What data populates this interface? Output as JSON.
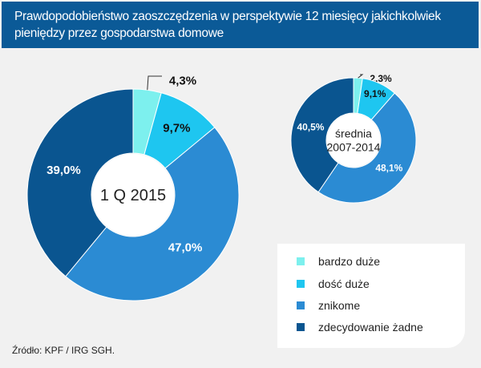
{
  "title": "Prawdopodobieństwo zaoszczędzenia w perspektywie 12 miesięcy jakichkolwiek pieniędzy przez gospodarstwa domowe",
  "source": "Źródło: KPF / IRG SGH.",
  "chart_data": [
    {
      "type": "pie",
      "variant": "donut",
      "center_label": "1 Q 2015",
      "categories": [
        "bardzo duże",
        "dość duże",
        "znikome",
        "zdecydowanie żadne"
      ],
      "values": [
        4.3,
        9.7,
        47.0,
        39.0
      ],
      "labels": [
        "4,3%",
        "9,7%",
        "47,0%",
        "39,0%"
      ]
    },
    {
      "type": "pie",
      "variant": "donut",
      "center_label": "średnia 2007-2014",
      "center_lines": [
        "średnia",
        "2007-2014"
      ],
      "categories": [
        "bardzo duże",
        "dość duże",
        "znikome",
        "zdecydowanie żadne"
      ],
      "values": [
        2.3,
        9.1,
        48.1,
        40.5
      ],
      "labels": [
        "2,3%",
        "9,1%",
        "48,1%",
        "40,5%"
      ]
    }
  ],
  "legend": [
    {
      "label": "bardzo duże",
      "color": "#7df0ee"
    },
    {
      "label": "dość duże",
      "color": "#1ec6f0"
    },
    {
      "label": "znikome",
      "color": "#2b8bd3"
    },
    {
      "label": "zdecydowanie żadne",
      "color": "#0a5590"
    }
  ]
}
